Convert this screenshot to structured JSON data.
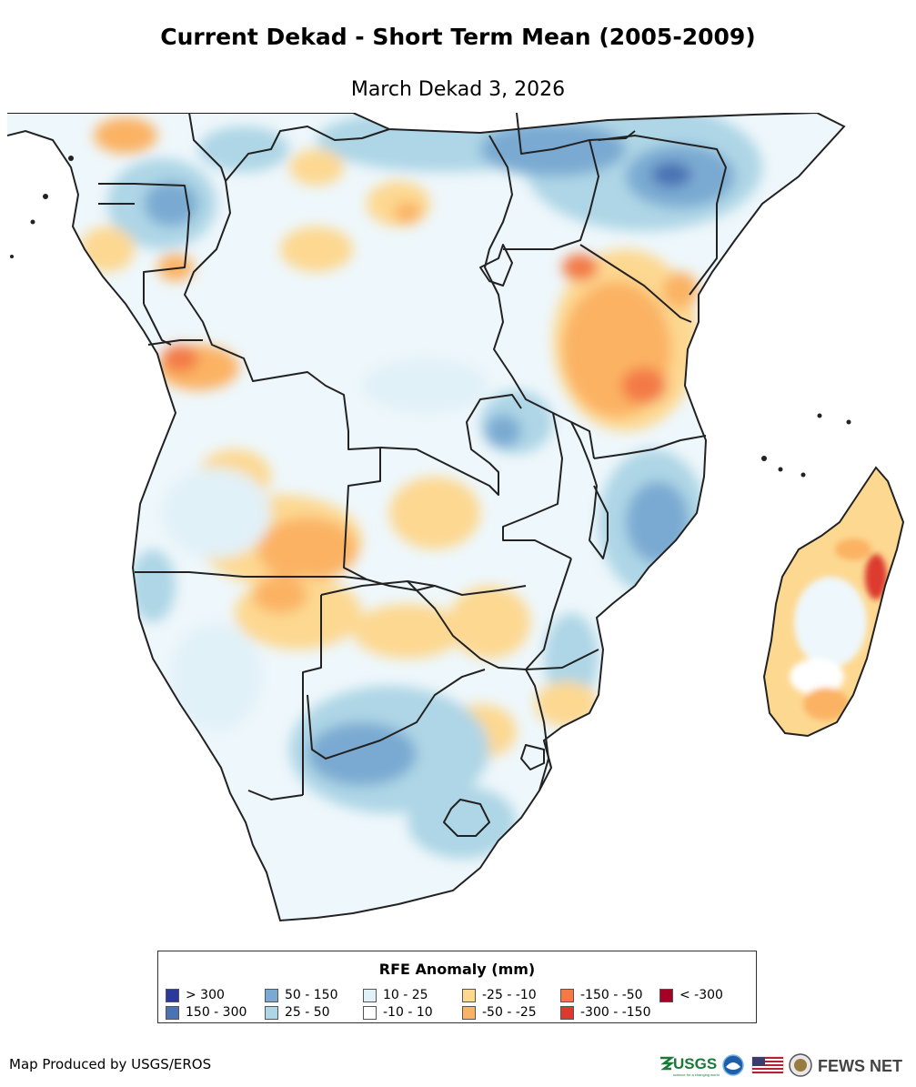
{
  "header": {
    "title": "Current Dekad - Short Term Mean (2005-2009)",
    "subtitle": "March Dekad 3, 2026"
  },
  "legend": {
    "title": "RFE Anomaly (mm)",
    "items": [
      {
        "label": "> 300",
        "color": "#2b3a99"
      },
      {
        "label": "150 - 300",
        "color": "#4a72b4"
      },
      {
        "label": "50 - 150",
        "color": "#7aaad2"
      },
      {
        "label": "25 - 50",
        "color": "#aed6e6"
      },
      {
        "label": "10 - 25",
        "color": "#e1f1f8"
      },
      {
        "label": "-10 - 10",
        "color": "#ffffff"
      },
      {
        "label": "-25 - -10",
        "color": "#fdd891"
      },
      {
        "label": "-50 - -25",
        "color": "#fbb264"
      },
      {
        "label": "-150 - -50",
        "color": "#f37a47"
      },
      {
        "label": "-300 - -150",
        "color": "#dc3a2f"
      },
      {
        "label": "< -300",
        "color": "#a50026"
      }
    ]
  },
  "footer": {
    "credit": "Map Produced by USGS/EROS",
    "usgs_logo": "USGS",
    "usgs_tagline": "science for a changing world",
    "fews_logo": "FEWS NET",
    "icons": [
      "usgs-logo",
      "noaa-logo-icon",
      "us-flag-icon",
      "state-dept-seal-icon"
    ]
  },
  "map": {
    "colors": {
      "outline": "#222222",
      "blue_light": "#e1f1f8",
      "blue_mid": "#aed6e6",
      "blue_dark": "#7aaad2",
      "blue_deep": "#4a72b4",
      "orange_light": "#fdd891",
      "orange_mid": "#fbb264",
      "orange_dark": "#f37a47",
      "red": "#dc3a2f"
    }
  }
}
